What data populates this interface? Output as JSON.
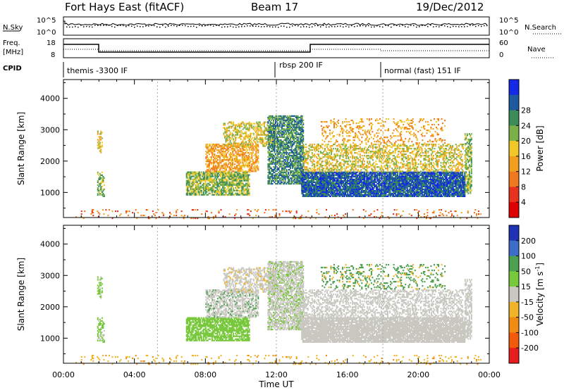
{
  "header": {
    "station": "Fort Hays East (fitACF)",
    "beam": "Beam 17",
    "date": "19/Dec/2012"
  },
  "top_panels": {
    "nsky_label": "N.Sky",
    "nsearch_label": "N.Search",
    "noise_ticks_left": [
      "10^5",
      "10^0"
    ],
    "noise_ticks_right": [
      "10^5",
      "10^0"
    ],
    "freq_label": "Freq.",
    "freq_unit": "[MHz]",
    "freq_ticks": [
      "18",
      "8"
    ],
    "nave_label": "Nave",
    "nave_ticks": [
      "60",
      "0"
    ],
    "cpid_label": "CPID",
    "cpid_segments": [
      {
        "label": "themis -3300 IF",
        "start_h": 0
      },
      {
        "label": "rbsp 200 IF",
        "start_h": 12
      },
      {
        "label": "normal (fast) 151 IF",
        "start_h": 18
      }
    ]
  },
  "chart_data": [
    {
      "type": "heatmap",
      "name": "power",
      "ylabel": "Slant Range [km]",
      "xlabel": "Time UT",
      "xlim": [
        0,
        24
      ],
      "ylim": [
        200,
        4600
      ],
      "yticks": [
        "1000",
        "2000",
        "3000",
        "4000"
      ],
      "xticks": [
        "00:00",
        "04:00",
        "08:00",
        "12:00",
        "16:00",
        "20:00",
        "00:00"
      ],
      "colorbar_label": "Power [dB]",
      "colorbar_ticks": [
        "4",
        "8",
        "12",
        "16",
        "20",
        "24",
        "28"
      ],
      "colorbar_colors": [
        "#1428e6",
        "#1e5aa0",
        "#3c8c5a",
        "#7ab048",
        "#f0c828",
        "#f0a01e",
        "#f0781e",
        "#e6321e",
        "#dc0000"
      ]
    },
    {
      "type": "heatmap",
      "name": "velocity",
      "ylabel": "Slant Range [km]",
      "xlabel": "Time UT",
      "xlim": [
        0,
        24
      ],
      "ylim": [
        200,
        4600
      ],
      "yticks": [
        "1000",
        "2000",
        "3000",
        "4000"
      ],
      "xticks": [
        "00:00",
        "04:00",
        "08:00",
        "12:00",
        "16:00",
        "20:00",
        "00:00"
      ],
      "colorbar_label": "Velocity [m s",
      "colorbar_label_sup": "-1",
      "colorbar_label_end": "]",
      "colorbar_ticks": [
        "200",
        "100",
        "50",
        "15",
        "-15",
        "-50",
        "-100",
        "-200"
      ],
      "colorbar_colors": [
        "#1e32b4",
        "#3c6ec8",
        "#4ca050",
        "#78c83c",
        "#c8c8c0",
        "#f0b428",
        "#f08c14",
        "#f05a0a",
        "#e61e1e"
      ]
    }
  ]
}
